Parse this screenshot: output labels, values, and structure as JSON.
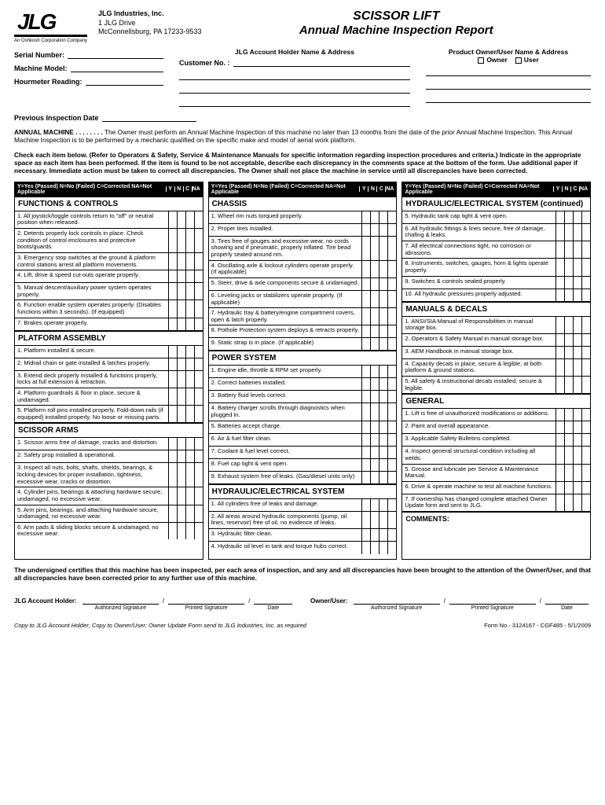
{
  "company": {
    "logo": "JLG",
    "logo_sub": "An Oshkosh Corporation Company",
    "name": "JLG Industries, Inc.",
    "addr1": "1 JLG Drive",
    "addr2": "McConnellsburg, PA 17233-9533"
  },
  "title1": "SCISSOR LIFT",
  "title2": "Annual Machine Inspection Report",
  "top_fields": {
    "serial": "Serial Number:",
    "model": "Machine Model:",
    "hour": "Hourmeter Reading:",
    "prev": "Previous Inspection Date",
    "cust": "Customer No. :",
    "acct_hdr": "JLG Account Holder Name & Address",
    "prod_hdr": "Product Owner/User Name & Address",
    "owner": "Owner",
    "user": "User"
  },
  "para1_lead": "ANNUAL MACHINE . . . . . . . .",
  "para1": "The Owner must perform an Annual Machine Inspection of this machine no later than 13 months from the date of the prior Annual Machine Inspection. This Annual Machine Inspection is to be performed by a mechanic qualified on the specific make and model of aerial work platform.",
  "para2": "Check each item below. (Refer to Operators & Safety, Service & Maintenance Manuals for specific information regarding inspection procedures and criteria.) Indicate in the appropriate space as each item has been performed. If the item is found to be not acceptable, describe each discrepancy in the comments space at the bottom of the form. Use additional paper if necessary. Immediate action must be taken to correct all discrepancies. The Owner shall not place the machine in service until all discrepancies have been corrected.",
  "legend_text": "Y=Yes (Passed)   N=No (Failed)   C=Corrected   NA=Not Applicable",
  "legend_cols": [
    "Y",
    "N",
    "C",
    "NA"
  ],
  "col1": [
    {
      "hdr": "FUNCTIONS & CONTROLS"
    },
    {
      "t": "1. All joystick/toggle controls return to \"off\" or neutral position when released."
    },
    {
      "t": "2. Detents properly lock controls in place. Check condition of control enclosures and protective boots/guards."
    },
    {
      "t": "3. Emergency stop switches at the ground & platform control stations arrest all platform movements."
    },
    {
      "t": "4. Lift, drive & speed cut-outs operate properly."
    },
    {
      "t": "5. Manual descent/auxiliary power system operates properly."
    },
    {
      "t": "6. Function enable system operates properly. (Disables functions within 3 seconds). (If equipped)"
    },
    {
      "t": "7. Brakes operate properly."
    },
    {
      "hdr": "PLATFORM ASSEMBLY"
    },
    {
      "t": "1. Platform installed & secure."
    },
    {
      "t": "2. Midrail chain or gate installed & latches properly."
    },
    {
      "t": "3. Extend deck properly installed & functions properly, locks at full extension & retraction."
    },
    {
      "t": "4. Platform guardrails & floor in place, secure & undamaged."
    },
    {
      "t": "5. Platform roll pins installed properly. Fold-down rails (if equipped) installed properly. No loose or missing parts."
    },
    {
      "hdr": "SCISSOR ARMS"
    },
    {
      "t": "1. Scissor arms free of damage, cracks and distortion."
    },
    {
      "t": "2. Safety prop installed & operational."
    },
    {
      "t": "3. Inspect all nuts, bolts, shafts, shields, bearings, & locking devices for proper installation, tightness, excessive wear, cracks or distortion."
    },
    {
      "t": "4. Cylinder pins, bearings & attaching hardware secure, undamaged, no excessive wear."
    },
    {
      "t": "5. Arm pins, bearings, and attaching hardware secure, undamaged, no excessive wear."
    },
    {
      "t": "6. Arm pads & sliding blocks secure & undamaged, no excessive wear."
    }
  ],
  "col2": [
    {
      "hdr": "CHASSIS"
    },
    {
      "t": "1. Wheel rim nuts torqued properly."
    },
    {
      "t": "2. Proper tires installed."
    },
    {
      "t": "3. Tires free of gouges and excessive wear, no cords showing and if pneumatic, properly inflated. Tire bead properly seated around rim."
    },
    {
      "t": "4. Oscillating axle & lockout cylinders operate properly. (If applicable)"
    },
    {
      "t": "5. Steer, drive & axle components secure & undamaged."
    },
    {
      "t": "6. Leveling jacks or stabilizers operate properly. (If applicable)"
    },
    {
      "t": "7. Hydraulic tray & battery/engine compartment covers, open & latch properly."
    },
    {
      "t": "8. Pothole Protection system deploys & retracts properly."
    },
    {
      "t": "9. Static strap is in place. (If applicable)"
    },
    {
      "hdr": "POWER SYSTEM"
    },
    {
      "t": "1. Engine idle, throttle & RPM set properly."
    },
    {
      "t": "2. Correct batteries installed."
    },
    {
      "t": "3. Battery fluid levels correct."
    },
    {
      "t": "4. Battery charger scrolls through diagnostics when plugged in."
    },
    {
      "t": "5. Batteries accept charge."
    },
    {
      "t": "6. Air & fuel filter clean."
    },
    {
      "t": "7. Coolant & fuel level correct."
    },
    {
      "t": "8. Fuel cap tight & vent open."
    },
    {
      "t": "9. Exhaust system free of leaks. (Gas/diesel units only)"
    },
    {
      "hdr": "HYDRAULIC/ELECTRICAL SYSTEM"
    },
    {
      "t": "1. All cylinders free of leaks and damage."
    },
    {
      "t": "2. All areas around hydraulic components (pump, oil lines, reservoir) free of oil, no evidence of leaks."
    },
    {
      "t": "3. Hydraulic filter clean."
    },
    {
      "t": "4. Hydraulic oil level in tank and torque hubs correct."
    }
  ],
  "col3": [
    {
      "hdr": "HYDRAULIC/ELECTRICAL SYSTEM (continued)"
    },
    {
      "t": "5. Hydraulic tank cap tight & vent open."
    },
    {
      "t": "6. All hydraulic fittings & lines secure, free of damage, chafing & leaks."
    },
    {
      "t": "7. All electrical connections tight, no corrosion or abrasions."
    },
    {
      "t": "8. Instruments, switches, gauges, horn & lights operate properly."
    },
    {
      "t": "9. Switches & controls sealed properly."
    },
    {
      "t": "10. All hydraulic pressures properly adjusted."
    },
    {
      "hdr": "MANUALS & DECALS"
    },
    {
      "t": "1. ANSI/SIA Manual of Responsibilities in manual storage box."
    },
    {
      "t": "2. Operators & Safety Manual in manual storage box."
    },
    {
      "t": "3. AEM Handbook in manual storage box."
    },
    {
      "t": "4. Capacity decals in place, secure & legible, at both platform & ground stations."
    },
    {
      "t": "5. All safety & instructional decals installed, secure & legible."
    },
    {
      "hdr": "GENERAL"
    },
    {
      "t": "1. Lift is free of unauthorized modifications or additions."
    },
    {
      "t": "2. Paint and overall appearance."
    },
    {
      "t": "3. Applicable Safety Bulletins completed."
    },
    {
      "t": "4. Inspect general structural condition including all welds."
    },
    {
      "t": "5. Grease and lubricate per Service & Maintenance Manual."
    },
    {
      "t": "6. Drive & operate machine to test all machine functions."
    },
    {
      "t": "7. If ownership has changed complete attached Owner Update form and sent to JLG."
    }
  ],
  "comments_label": "COMMENTS:",
  "cert": "The undersigned certifies that this machine has been inspected, per each area of inspection, and any and all discrepancies have been brought to the attention of the Owner/User, and that all discrepancies have been corrected prior to any further use of this machine.",
  "sig": {
    "acct": "JLG Account Holder:",
    "owner": "Owner/User:",
    "auth": "Authorized Signature",
    "print": "Printed Signature",
    "date": "Date"
  },
  "footer_left": "Copy to JLG Account Holder;  Copy to Owner/User;  Owner Update Form send to JLG Industries, Inc. as required",
  "footer_right": "Form No.- 3124167 - CGF485 - 5/1/2009"
}
